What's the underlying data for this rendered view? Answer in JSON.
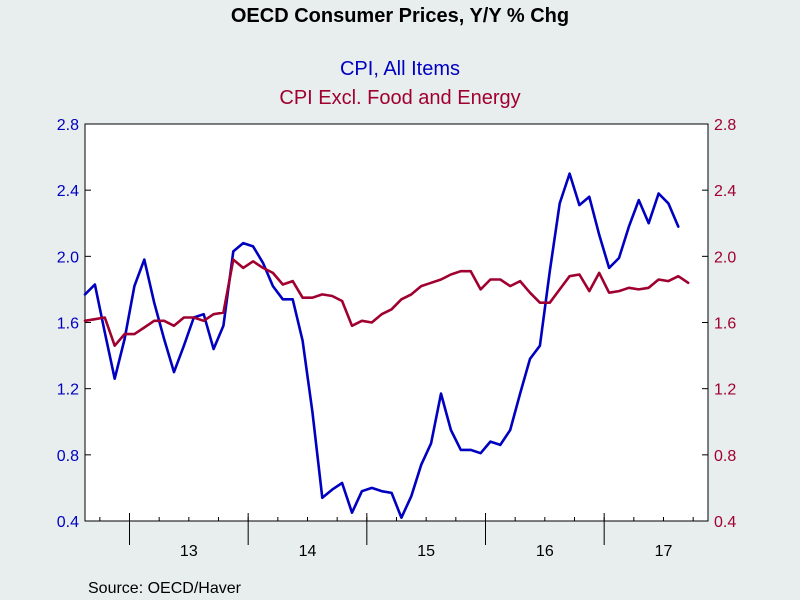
{
  "chart_data": {
    "type": "line",
    "title": "OECD Consumer Prices, Y/Y % Chg",
    "source": "Source:  OECD/Haver",
    "x_start": 2012.625,
    "x_end": 2017.875,
    "x_tick_labels": [
      {
        "label": "13",
        "x": 2013.5
      },
      {
        "label": "14",
        "x": 2014.5
      },
      {
        "label": "15",
        "x": 2015.5
      },
      {
        "label": "16",
        "x": 2016.5
      },
      {
        "label": "17",
        "x": 2017.5
      }
    ],
    "x_year_boundaries": [
      2013,
      2014,
      2015,
      2016,
      2017
    ],
    "ylim_left": [
      0.4,
      2.8
    ],
    "ylim_right": [
      0.4,
      2.8
    ],
    "yticks": [
      "0.4",
      "0.8",
      "1.2",
      "1.6",
      "2.0",
      "2.4",
      "2.8"
    ],
    "grid": false,
    "series": [
      {
        "name": "CPI, All Items",
        "color": "#0000c0",
        "axis": "left",
        "values": [
          1.77,
          1.83,
          1.54,
          1.26,
          1.5,
          1.82,
          1.98,
          1.72,
          1.5,
          1.3,
          1.46,
          1.63,
          1.65,
          1.44,
          1.58,
          2.03,
          2.08,
          2.06,
          1.96,
          1.82,
          1.74,
          1.74,
          1.49,
          1.06,
          0.54,
          0.59,
          0.63,
          0.45,
          0.58,
          0.6,
          0.58,
          0.57,
          0.42,
          0.55,
          0.74,
          0.87,
          1.17,
          0.95,
          0.83,
          0.83,
          0.81,
          0.88,
          0.86,
          0.95,
          1.17,
          1.38,
          1.46,
          1.91,
          2.32,
          2.5,
          2.31,
          2.36,
          2.13,
          1.93,
          1.99,
          2.18,
          2.34,
          2.2,
          2.38,
          2.32,
          2.18
        ]
      },
      {
        "name": "CPI Excl. Food and Energy",
        "color": "#a00030",
        "axis": "right",
        "values": [
          1.61,
          1.62,
          1.63,
          1.46,
          1.53,
          1.53,
          1.57,
          1.61,
          1.61,
          1.58,
          1.63,
          1.63,
          1.61,
          1.65,
          1.66,
          1.98,
          1.93,
          1.97,
          1.93,
          1.9,
          1.83,
          1.85,
          1.75,
          1.75,
          1.77,
          1.76,
          1.73,
          1.58,
          1.61,
          1.6,
          1.65,
          1.68,
          1.74,
          1.77,
          1.82,
          1.84,
          1.86,
          1.89,
          1.91,
          1.91,
          1.8,
          1.86,
          1.86,
          1.82,
          1.85,
          1.78,
          1.72,
          1.72,
          1.8,
          1.88,
          1.89,
          1.79,
          1.9,
          1.78,
          1.79,
          1.81,
          1.8,
          1.81,
          1.86,
          1.85,
          1.88,
          1.84
        ]
      }
    ]
  }
}
